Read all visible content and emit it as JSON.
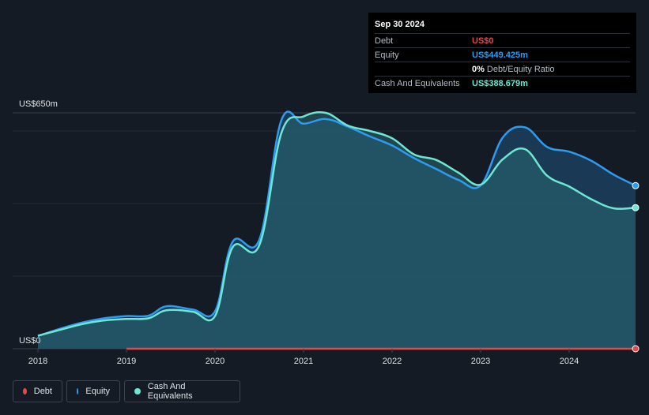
{
  "tooltip": {
    "date": "Sep 30 2024",
    "rows": [
      {
        "label": "Debt",
        "value": "US$0",
        "color": "#e64747"
      },
      {
        "label": "Equity",
        "value": "US$449.425m",
        "color": "#2d9bf0"
      },
      {
        "label": "",
        "value": "0%",
        "suffix": "Debt/Equity Ratio",
        "color": "#ffffff"
      },
      {
        "label": "Cash And Equivalents",
        "value": "US$388.679m",
        "color": "#6ee7d2"
      }
    ]
  },
  "legend": [
    {
      "label": "Debt",
      "color": "#e64747"
    },
    {
      "label": "Equity",
      "color": "#2d9bf0"
    },
    {
      "label": "Cash And Equivalents",
      "color": "#6ee7d2"
    }
  ],
  "chart_data": {
    "type": "area",
    "y_top_label": "US$650m",
    "y_bottom_label": "US$0",
    "ylim": [
      0,
      650
    ],
    "xlim": [
      2018.0,
      2024.75
    ],
    "x_ticks": [
      "2018",
      "2019",
      "2020",
      "2021",
      "2022",
      "2023",
      "2024"
    ],
    "grid": true,
    "legend_position": "bottom-left",
    "series": [
      {
        "name": "Debt",
        "color": "#e64747",
        "points": [
          [
            2019.0,
            0
          ],
          [
            2024.75,
            0
          ]
        ]
      },
      {
        "name": "Equity",
        "color": "#2d9bf0",
        "points": [
          [
            2018.0,
            35
          ],
          [
            2018.25,
            55
          ],
          [
            2018.5,
            72
          ],
          [
            2018.75,
            84
          ],
          [
            2019.0,
            90
          ],
          [
            2019.25,
            91
          ],
          [
            2019.45,
            117
          ],
          [
            2019.75,
            108
          ],
          [
            2020.0,
            103
          ],
          [
            2020.2,
            295
          ],
          [
            2020.5,
            300
          ],
          [
            2020.75,
            630
          ],
          [
            2021.0,
            620
          ],
          [
            2021.25,
            633
          ],
          [
            2021.5,
            612
          ],
          [
            2021.75,
            585
          ],
          [
            2022.0,
            560
          ],
          [
            2022.25,
            525
          ],
          [
            2022.5,
            495
          ],
          [
            2022.75,
            465
          ],
          [
            2023.0,
            450
          ],
          [
            2023.25,
            582
          ],
          [
            2023.5,
            610
          ],
          [
            2023.75,
            556
          ],
          [
            2024.0,
            543
          ],
          [
            2024.25,
            518
          ],
          [
            2024.5,
            480
          ],
          [
            2024.75,
            449.425
          ]
        ]
      },
      {
        "name": "Cash And Equivalents",
        "color": "#6ee7d2",
        "points": [
          [
            2018.0,
            36
          ],
          [
            2018.25,
            52
          ],
          [
            2018.5,
            68
          ],
          [
            2018.75,
            78
          ],
          [
            2019.0,
            82
          ],
          [
            2019.25,
            84
          ],
          [
            2019.45,
            106
          ],
          [
            2019.75,
            102
          ],
          [
            2020.0,
            90
          ],
          [
            2020.2,
            280
          ],
          [
            2020.5,
            285
          ],
          [
            2020.75,
            595
          ],
          [
            2021.0,
            640
          ],
          [
            2021.25,
            650
          ],
          [
            2021.5,
            615
          ],
          [
            2021.75,
            600
          ],
          [
            2022.0,
            580
          ],
          [
            2022.25,
            535
          ],
          [
            2022.5,
            520
          ],
          [
            2022.75,
            485
          ],
          [
            2023.0,
            452
          ],
          [
            2023.25,
            522
          ],
          [
            2023.5,
            550
          ],
          [
            2023.75,
            477
          ],
          [
            2024.0,
            447
          ],
          [
            2024.25,
            412
          ],
          [
            2024.5,
            387
          ],
          [
            2024.75,
            388.679
          ]
        ]
      }
    ]
  }
}
